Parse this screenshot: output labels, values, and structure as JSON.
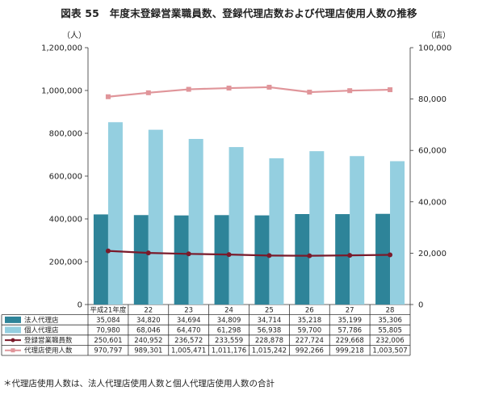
{
  "title": "図表 55　年度末登録営業職員数、登録代理店数および代理店使用人数の推移",
  "footnote": "＊代理店使用人数は、法人代理店使用人数と個人代理店使用人数の合計",
  "colors": {
    "corporate_agents": "#2e8499",
    "individual_agents": "#94cfe0",
    "sales_staff": "#7a1a2a",
    "agent_employees": "#e0959a"
  },
  "chart_data": {
    "type": "bar",
    "title": "図表 55　年度末登録営業職員数、登録代理店数および代理店使用人数の推移",
    "categories": [
      "平成21年度",
      "22",
      "23",
      "24",
      "25",
      "26",
      "27",
      "28"
    ],
    "left_axis": {
      "unit_label": "（人）",
      "ylim": [
        0,
        1200000
      ],
      "ticks": [
        "0",
        "200,000",
        "400,000",
        "600,000",
        "800,000",
        "1,000,000",
        "1,200,000"
      ]
    },
    "right_axis": {
      "unit_label": "（店）",
      "ylim": [
        0,
        100000
      ],
      "ticks": [
        "0",
        "20,000",
        "40,000",
        "60,000",
        "80,000",
        "100,000"
      ]
    },
    "series": [
      {
        "name": "法人代理店",
        "type": "bar",
        "axis": "right",
        "color": "#2e8499",
        "values": [
          35084,
          34820,
          34694,
          34809,
          34714,
          35218,
          35199,
          35306
        ],
        "labels": [
          "35,084",
          "34,820",
          "34,694",
          "34,809",
          "34,714",
          "35,218",
          "35,199",
          "35,306"
        ]
      },
      {
        "name": "個人代理店",
        "type": "bar",
        "axis": "right",
        "color": "#94cfe0",
        "values": [
          70980,
          68046,
          64470,
          61298,
          56938,
          59700,
          57786,
          55805
        ],
        "labels": [
          "70,980",
          "68,046",
          "64,470",
          "61,298",
          "56,938",
          "59,700",
          "57,786",
          "55,805"
        ]
      },
      {
        "name": "登録営業職員数",
        "type": "line",
        "axis": "left",
        "color": "#7a1a2a",
        "marker": "circle",
        "values": [
          250601,
          240952,
          236572,
          233559,
          228878,
          227724,
          229668,
          232006
        ],
        "labels": [
          "250,601",
          "240,952",
          "236,572",
          "233,559",
          "228,878",
          "227,724",
          "229,668",
          "232,006"
        ]
      },
      {
        "name": "代理店使用人数",
        "type": "line",
        "axis": "left",
        "color": "#e0959a",
        "marker": "square",
        "values": [
          970797,
          989301,
          1005471,
          1011176,
          1015242,
          992266,
          999218,
          1003507
        ],
        "labels": [
          "970,797",
          "989,301",
          "1,005,471",
          "1,011,176",
          "1,015,242",
          "992,266",
          "999,218",
          "1,003,507"
        ]
      }
    ],
    "grid": false,
    "legend": "data table below chart"
  }
}
